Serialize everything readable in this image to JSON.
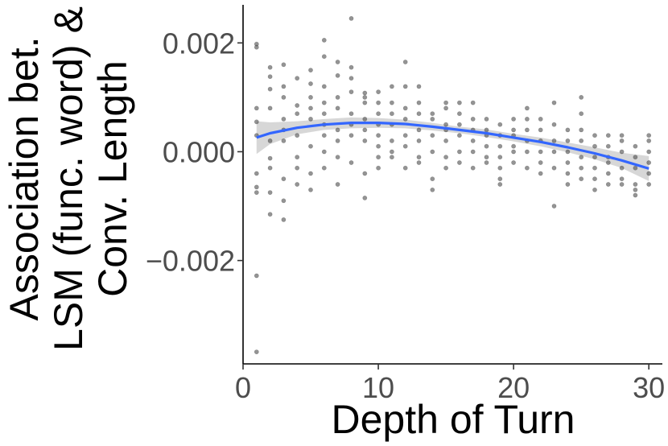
{
  "chart_data": {
    "type": "scatter",
    "xlabel": "Depth of Turn",
    "ylabel_lines": [
      "Association bet.",
      "LSM (func. word) &",
      "Conv. Length"
    ],
    "xlim": [
      0,
      31
    ],
    "ylim": [
      -0.0039,
      0.0027
    ],
    "x_ticks": [
      {
        "value": 0,
        "label": "0"
      },
      {
        "value": 10,
        "label": "10"
      },
      {
        "value": 20,
        "label": "20"
      },
      {
        "value": 30,
        "label": "30"
      }
    ],
    "y_ticks": [
      {
        "value": 0.002,
        "label": "0.002"
      },
      {
        "value": 0.0,
        "label": "0.000"
      },
      {
        "value": -0.002,
        "label": "−0.002"
      }
    ],
    "grid": false,
    "legend": "none",
    "colors": {
      "points": "#4d4d4d",
      "smooth_line": "#3366ff",
      "confidence_band": "#bdbdbd"
    },
    "points": [
      [
        1,
        0.00198
      ],
      [
        1,
        0.00192
      ],
      [
        1,
        0.0008
      ],
      [
        1,
        0.00055
      ],
      [
        1,
        0.0003
      ],
      [
        1,
        -0.0004
      ],
      [
        1,
        -0.00065
      ],
      [
        1,
        -0.00075
      ],
      [
        1,
        -0.00228
      ],
      [
        1,
        -0.00368
      ],
      [
        2,
        0.00155
      ],
      [
        2,
        0.00138
      ],
      [
        2,
        0.00115
      ],
      [
        2,
        0.0008
      ],
      [
        2,
        0.0002
      ],
      [
        2,
        -0.00012
      ],
      [
        2,
        -0.0003
      ],
      [
        2,
        -0.00075
      ],
      [
        2,
        -0.00115
      ],
      [
        3,
        0.0016
      ],
      [
        3,
        0.0012
      ],
      [
        3,
        0.001
      ],
      [
        3,
        0.0006
      ],
      [
        3,
        0.0004
      ],
      [
        3,
        0.0002
      ],
      [
        3,
        -0.0005
      ],
      [
        3,
        -0.0009
      ],
      [
        3,
        -0.00125
      ],
      [
        4,
        0.00135
      ],
      [
        4,
        0.00085
      ],
      [
        4,
        0.0007
      ],
      [
        4,
        0.0003
      ],
      [
        4,
        -0.0001
      ],
      [
        4,
        -0.0003
      ],
      [
        4,
        -0.0006
      ],
      [
        5,
        0.0015
      ],
      [
        5,
        0.00125
      ],
      [
        5,
        0.001
      ],
      [
        5,
        0.0008
      ],
      [
        5,
        0.0006
      ],
      [
        5,
        0.0001
      ],
      [
        5,
        -0.0004
      ],
      [
        5,
        -0.0007
      ],
      [
        6,
        0.00205
      ],
      [
        6,
        0.00175
      ],
      [
        6,
        0.0012
      ],
      [
        6,
        0.0009
      ],
      [
        6,
        0.0007
      ],
      [
        6,
        0.0005
      ],
      [
        6,
        0.0003
      ],
      [
        6,
        0.0
      ],
      [
        6,
        -0.0003
      ],
      [
        7,
        0.00165
      ],
      [
        7,
        0.0014
      ],
      [
        7,
        0.001
      ],
      [
        7,
        0.0008
      ],
      [
        7,
        0.0004
      ],
      [
        7,
        0.0002
      ],
      [
        7,
        -0.0001
      ],
      [
        7,
        -0.0006
      ],
      [
        8,
        0.00245
      ],
      [
        8,
        0.00155
      ],
      [
        8,
        0.00135
      ],
      [
        8,
        0.0011
      ],
      [
        8,
        0.0007
      ],
      [
        8,
        0.0005
      ],
      [
        8,
        0.0003
      ],
      [
        8,
        -0.0002
      ],
      [
        9,
        0.00108
      ],
      [
        9,
        0.001
      ],
      [
        9,
        0.0009
      ],
      [
        9,
        0.0006
      ],
      [
        9,
        0.0004
      ],
      [
        9,
        0.0002
      ],
      [
        9,
        -0.0004
      ],
      [
        9,
        -0.00085
      ],
      [
        10,
        0.0011
      ],
      [
        10,
        0.0009
      ],
      [
        10,
        0.0007
      ],
      [
        10,
        0.0005
      ],
      [
        10,
        0.0003
      ],
      [
        10,
        0.0001
      ],
      [
        10,
        -0.0001
      ],
      [
        10,
        -0.0003
      ],
      [
        11,
        0.0012
      ],
      [
        11,
        0.0009
      ],
      [
        11,
        0.0007
      ],
      [
        11,
        0.0005
      ],
      [
        11,
        0.0002
      ],
      [
        11,
        0.0
      ],
      [
        11,
        -0.0001
      ],
      [
        12,
        0.00165
      ],
      [
        12,
        0.0012
      ],
      [
        12,
        0.0008
      ],
      [
        12,
        0.0006
      ],
      [
        12,
        0.0003
      ],
      [
        12,
        0.0001
      ],
      [
        12,
        -0.0003
      ],
      [
        13,
        0.0012
      ],
      [
        13,
        0.0009
      ],
      [
        13,
        0.0007
      ],
      [
        13,
        0.0004
      ],
      [
        13,
        0.0002
      ],
      [
        13,
        -0.0001
      ],
      [
        13,
        -0.0002
      ],
      [
        14,
        0.0007
      ],
      [
        14,
        0.0006
      ],
      [
        14,
        0.0003
      ],
      [
        14,
        0.0
      ],
      [
        14,
        -0.0005
      ],
      [
        14,
        -0.0007
      ],
      [
        15,
        0.0009
      ],
      [
        15,
        0.0008
      ],
      [
        15,
        0.0005
      ],
      [
        15,
        0.0004
      ],
      [
        15,
        0.0002
      ],
      [
        15,
        -0.0001
      ],
      [
        15,
        -0.0003
      ],
      [
        16,
        0.0009
      ],
      [
        16,
        0.0007
      ],
      [
        16,
        0.0005
      ],
      [
        16,
        0.0003
      ],
      [
        16,
        0.0
      ],
      [
        16,
        -0.0002
      ],
      [
        17,
        0.0009
      ],
      [
        17,
        0.0006
      ],
      [
        17,
        0.0004
      ],
      [
        17,
        0.0002
      ],
      [
        17,
        0.0
      ],
      [
        17,
        -0.0003
      ],
      [
        18,
        0.0006
      ],
      [
        18,
        0.0004
      ],
      [
        18,
        0.0003
      ],
      [
        18,
        0.0001
      ],
      [
        18,
        -0.0001
      ],
      [
        18,
        -0.0002
      ],
      [
        19,
        0.0005
      ],
      [
        19,
        0.0003
      ],
      [
        19,
        0.0001
      ],
      [
        19,
        -0.0001
      ],
      [
        19,
        -0.0003
      ],
      [
        19,
        -0.0005
      ],
      [
        19,
        -0.0006
      ],
      [
        20,
        0.0006
      ],
      [
        20,
        0.0004
      ],
      [
        20,
        0.0003
      ],
      [
        20,
        0.0001
      ],
      [
        20,
        0.0
      ],
      [
        20,
        -0.0002
      ],
      [
        21,
        0.0008
      ],
      [
        21,
        0.0006
      ],
      [
        21,
        0.0004
      ],
      [
        21,
        0.0002
      ],
      [
        21,
        0.0
      ],
      [
        21,
        -0.0003
      ],
      [
        22,
        0.0006
      ],
      [
        22,
        0.0004
      ],
      [
        22,
        0.0002
      ],
      [
        22,
        0.0
      ],
      [
        22,
        -0.0002
      ],
      [
        22,
        -0.0004
      ],
      [
        23,
        0.0009
      ],
      [
        23,
        0.0005
      ],
      [
        23,
        0.0002
      ],
      [
        23,
        0.0
      ],
      [
        23,
        -0.0003
      ],
      [
        23,
        -0.001
      ],
      [
        24,
        0.0004
      ],
      [
        24,
        0.0002
      ],
      [
        24,
        0.0
      ],
      [
        24,
        -0.0002
      ],
      [
        24,
        -0.0004
      ],
      [
        24,
        -0.0006
      ],
      [
        25,
        0.001
      ],
      [
        25,
        0.0007
      ],
      [
        25,
        0.0004
      ],
      [
        25,
        0.0002
      ],
      [
        25,
        -0.0001
      ],
      [
        25,
        -0.0003
      ],
      [
        25,
        -0.0005
      ],
      [
        26,
        0.0003
      ],
      [
        26,
        0.0001
      ],
      [
        26,
        -0.0001
      ],
      [
        26,
        -0.0003
      ],
      [
        26,
        -0.0005
      ],
      [
        26,
        -0.0007
      ],
      [
        27,
        0.0003
      ],
      [
        27,
        0.0001
      ],
      [
        27,
        -0.0001
      ],
      [
        27,
        -0.0002
      ],
      [
        27,
        -0.0004
      ],
      [
        27,
        -0.0006
      ],
      [
        28,
        0.0003
      ],
      [
        28,
        0.0002
      ],
      [
        28,
        0.0
      ],
      [
        28,
        -0.0003
      ],
      [
        28,
        -0.0005
      ],
      [
        28,
        -0.0006
      ],
      [
        29,
        0.0001
      ],
      [
        29,
        -0.0001
      ],
      [
        29,
        -0.0003
      ],
      [
        29,
        -0.0006
      ],
      [
        29,
        -0.0007
      ],
      [
        29,
        -0.0008
      ],
      [
        30,
        0.0003
      ],
      [
        30,
        0.0002
      ],
      [
        30,
        0.0
      ],
      [
        30,
        -0.0002
      ],
      [
        30,
        -0.0004
      ],
      [
        30,
        -0.0006
      ]
    ],
    "smooth": {
      "x": [
        1,
        2,
        4,
        6,
        8,
        10,
        12,
        14,
        16,
        18,
        20,
        22,
        24,
        26,
        28,
        30
      ],
      "y": [
        0.00026,
        0.00034,
        0.00044,
        0.0005,
        0.00053,
        0.00053,
        0.00051,
        0.00046,
        0.0004,
        0.00034,
        0.00026,
        0.00018,
        8e-05,
        -3e-05,
        -0.00016,
        -0.00031
      ],
      "lower": [
        -4e-05,
        0.00014,
        0.00032,
        0.0004,
        0.00043,
        0.00044,
        0.00043,
        0.00039,
        0.00034,
        0.00027,
        0.00019,
        0.0001,
        -1e-05,
        -0.00014,
        -0.0003,
        -0.00054
      ],
      "upper": [
        0.00056,
        0.00054,
        0.00056,
        0.0006,
        0.00063,
        0.00062,
        0.00059,
        0.00053,
        0.00046,
        0.00041,
        0.00033,
        0.00026,
        0.00017,
        8e-05,
        -2e-05,
        -8e-05
      ]
    }
  }
}
